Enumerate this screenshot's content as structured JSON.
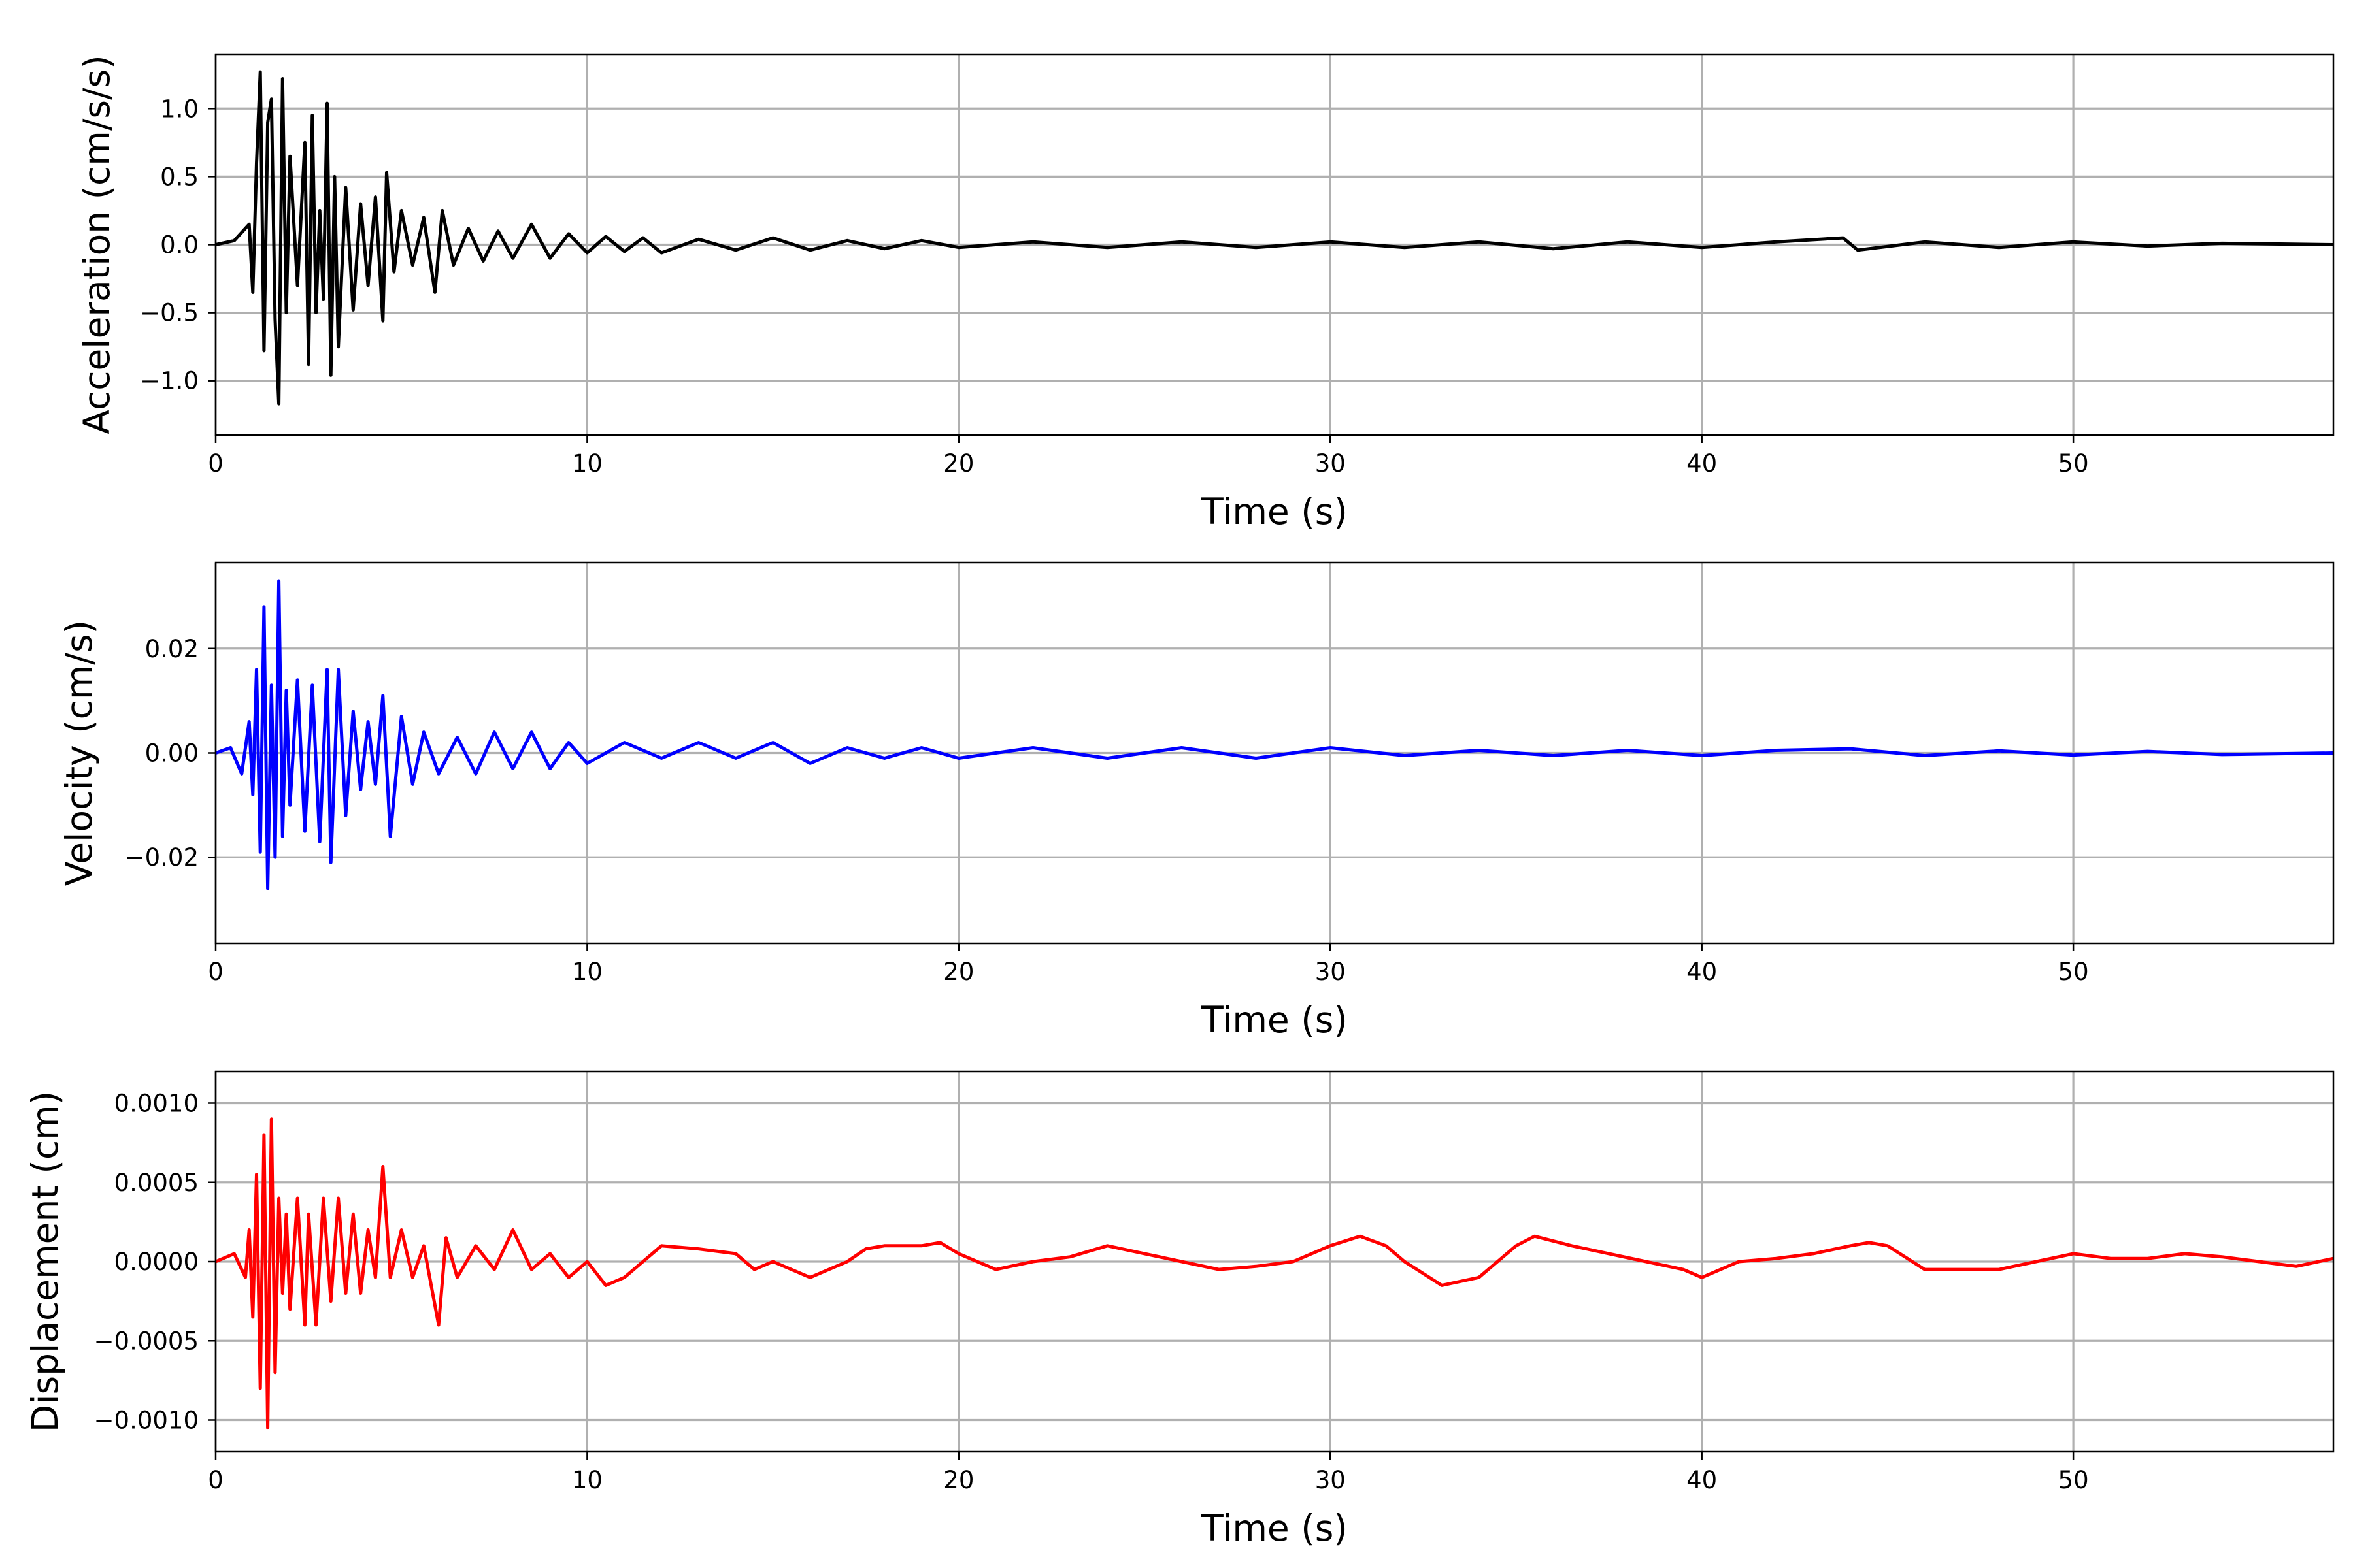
{
  "chart_data": [
    {
      "type": "line",
      "xlabel": "Time (s)",
      "ylabel": "Acceleration (cm/s/s)",
      "xlim": [
        0,
        57
      ],
      "ylim": [
        -1.4,
        1.4
      ],
      "xticks": [
        0,
        10,
        20,
        30,
        40,
        50
      ],
      "xtick_labels": [
        "0",
        "10",
        "20",
        "30",
        "40",
        "50"
      ],
      "yticks": [
        1.0,
        0.5,
        0.0,
        -0.5,
        -1.0
      ],
      "ytick_labels": [
        "1.0",
        "0.5",
        "0.0",
        "−0.5",
        "−1.0"
      ],
      "grid": true,
      "series": [
        {
          "color": "#000000",
          "x": [
            0,
            0.5,
            0.9,
            1.0,
            1.1,
            1.2,
            1.3,
            1.4,
            1.5,
            1.6,
            1.7,
            1.8,
            1.9,
            2.0,
            2.2,
            2.4,
            2.5,
            2.6,
            2.7,
            2.8,
            2.9,
            3.0,
            3.1,
            3.2,
            3.3,
            3.5,
            3.7,
            3.9,
            4.1,
            4.3,
            4.5,
            4.6,
            4.8,
            5.0,
            5.3,
            5.6,
            5.9,
            6.1,
            6.4,
            6.8,
            7.2,
            7.6,
            8.0,
            8.5,
            9.0,
            9.5,
            10.0,
            10.5,
            11.0,
            11.5,
            12.0,
            13.0,
            14.0,
            15.0,
            16.0,
            17.0,
            18.0,
            19.0,
            20.0,
            22.0,
            24.0,
            26.0,
            28.0,
            30.0,
            32.0,
            34.0,
            36.0,
            38.0,
            40.0,
            42.0,
            43.8,
            44.2,
            46.0,
            48.0,
            50.0,
            52.0,
            54.0,
            57.0
          ],
          "y": [
            0.0,
            0.03,
            0.15,
            -0.35,
            0.6,
            1.27,
            -0.78,
            0.9,
            1.07,
            -0.55,
            -1.17,
            1.22,
            -0.5,
            0.65,
            -0.3,
            0.75,
            -0.88,
            0.95,
            -0.5,
            0.25,
            -0.4,
            1.04,
            -0.96,
            0.5,
            -0.75,
            0.42,
            -0.48,
            0.3,
            -0.3,
            0.35,
            -0.56,
            0.53,
            -0.2,
            0.25,
            -0.15,
            0.2,
            -0.35,
            0.25,
            -0.15,
            0.12,
            -0.12,
            0.1,
            -0.1,
            0.15,
            -0.1,
            0.08,
            -0.06,
            0.06,
            -0.05,
            0.05,
            -0.06,
            0.04,
            -0.04,
            0.05,
            -0.04,
            0.03,
            -0.03,
            0.03,
            -0.02,
            0.02,
            -0.02,
            0.02,
            -0.02,
            0.02,
            -0.02,
            0.02,
            -0.03,
            0.02,
            -0.02,
            0.02,
            0.05,
            -0.04,
            0.02,
            -0.02,
            0.02,
            -0.01,
            0.01,
            0.0
          ]
        }
      ]
    },
    {
      "type": "line",
      "xlabel": "Time (s)",
      "ylabel": "Velocity (cm/s)",
      "xlim": [
        0,
        57
      ],
      "ylim": [
        -0.0365,
        0.0365
      ],
      "xticks": [
        0,
        10,
        20,
        30,
        40,
        50
      ],
      "xtick_labels": [
        "0",
        "10",
        "20",
        "30",
        "40",
        "50"
      ],
      "yticks": [
        0.02,
        0.0,
        -0.02
      ],
      "ytick_labels": [
        "0.02",
        "0.00",
        "−0.02"
      ],
      "grid": true,
      "series": [
        {
          "color": "#0000ff",
          "x": [
            0,
            0.4,
            0.7,
            0.9,
            1.0,
            1.1,
            1.2,
            1.3,
            1.4,
            1.5,
            1.6,
            1.7,
            1.8,
            1.9,
            2.0,
            2.2,
            2.4,
            2.6,
            2.8,
            3.0,
            3.1,
            3.3,
            3.5,
            3.7,
            3.9,
            4.1,
            4.3,
            4.5,
            4.7,
            5.0,
            5.3,
            5.6,
            6.0,
            6.5,
            7.0,
            7.5,
            8.0,
            8.5,
            9.0,
            9.5,
            10.0,
            11.0,
            12.0,
            13.0,
            14.0,
            15.0,
            16.0,
            17.0,
            18.0,
            19.0,
            20.0,
            22.0,
            24.0,
            26.0,
            28.0,
            30.0,
            32.0,
            34.0,
            36.0,
            38.0,
            40.0,
            42.0,
            44.0,
            46.0,
            48.0,
            50.0,
            52.0,
            54.0,
            57.0
          ],
          "y": [
            0.0,
            0.001,
            -0.004,
            0.006,
            -0.008,
            0.016,
            -0.019,
            0.028,
            -0.026,
            0.013,
            -0.02,
            0.033,
            -0.016,
            0.012,
            -0.01,
            0.014,
            -0.015,
            0.013,
            -0.017,
            0.016,
            -0.021,
            0.016,
            -0.012,
            0.008,
            -0.007,
            0.006,
            -0.006,
            0.011,
            -0.016,
            0.007,
            -0.006,
            0.004,
            -0.004,
            0.003,
            -0.004,
            0.004,
            -0.003,
            0.004,
            -0.003,
            0.002,
            -0.002,
            0.002,
            -0.001,
            0.002,
            -0.001,
            0.002,
            -0.002,
            0.001,
            -0.001,
            0.001,
            -0.001,
            0.001,
            -0.001,
            0.001,
            -0.001,
            0.001,
            -0.0005,
            0.0005,
            -0.0005,
            0.0005,
            -0.0005,
            0.0005,
            0.0008,
            -0.0005,
            0.0004,
            -0.0004,
            0.0003,
            -0.0003,
            0.0
          ]
        }
      ]
    },
    {
      "type": "line",
      "xlabel": "Time (s)",
      "ylabel": "Displacement (cm)",
      "xlim": [
        0,
        57
      ],
      "ylim": [
        -0.0012,
        0.0012
      ],
      "xticks": [
        0,
        10,
        20,
        30,
        40,
        50
      ],
      "xtick_labels": [
        "0",
        "10",
        "20",
        "30",
        "40",
        "50"
      ],
      "yticks": [
        0.001,
        0.0005,
        0.0,
        -0.0005,
        -0.001
      ],
      "ytick_labels": [
        "0.0010",
        "0.0005",
        "0.0000",
        "−0.0005",
        "−0.0010"
      ],
      "grid": true,
      "series": [
        {
          "color": "#ff0000",
          "x": [
            0,
            0.5,
            0.8,
            0.9,
            1.0,
            1.1,
            1.2,
            1.3,
            1.4,
            1.5,
            1.6,
            1.7,
            1.8,
            1.9,
            2.0,
            2.2,
            2.4,
            2.5,
            2.7,
            2.9,
            3.1,
            3.3,
            3.5,
            3.7,
            3.9,
            4.1,
            4.3,
            4.5,
            4.7,
            5.0,
            5.3,
            5.6,
            6.0,
            6.2,
            6.5,
            7.0,
            7.5,
            8.0,
            8.5,
            9.0,
            9.5,
            10.0,
            10.5,
            11.0,
            11.5,
            12.0,
            13.0,
            14.0,
            14.5,
            15.0,
            16.0,
            17.0,
            17.5,
            18.0,
            19.0,
            19.5,
            20.0,
            21.0,
            22.0,
            23.0,
            24.0,
            25.0,
            26.0,
            27.0,
            28.0,
            29.0,
            30.0,
            30.8,
            31.5,
            32.0,
            33.0,
            34.0,
            35.0,
            35.5,
            36.5,
            37.5,
            38.5,
            39.5,
            40.0,
            41.0,
            42.0,
            43.0,
            44.0,
            44.5,
            45.0,
            46.0,
            47.0,
            48.0,
            49.0,
            50.0,
            51.0,
            52.0,
            53.0,
            54.0,
            55.0,
            56.0,
            57.0
          ],
          "y": [
            0.0,
            5e-05,
            -0.0001,
            0.0002,
            -0.00035,
            0.00055,
            -0.0008,
            0.0008,
            -0.00105,
            0.0009,
            -0.0007,
            0.0004,
            -0.0002,
            0.0003,
            -0.0003,
            0.0004,
            -0.0004,
            0.0003,
            -0.0004,
            0.0004,
            -0.00025,
            0.0004,
            -0.0002,
            0.0003,
            -0.0002,
            0.0002,
            -0.0001,
            0.0006,
            -0.0001,
            0.0002,
            -0.0001,
            0.0001,
            -0.0004,
            0.00015,
            -0.0001,
            0.0001,
            -5e-05,
            0.0002,
            -5e-05,
            5e-05,
            -0.0001,
            0.0,
            -0.00015,
            -0.0001,
            0.0,
            0.0001,
            8e-05,
            5e-05,
            -5e-05,
            0.0,
            -0.0001,
            0.0,
            8e-05,
            0.0001,
            0.0001,
            0.00012,
            5e-05,
            -5e-05,
            0.0,
            3e-05,
            0.0001,
            5e-05,
            0.0,
            -5e-05,
            -3e-05,
            0.0,
            0.0001,
            0.00016,
            0.0001,
            0.0,
            -0.00015,
            -0.0001,
            0.0001,
            0.00016,
            0.0001,
            5e-05,
            0.0,
            -5e-05,
            -0.0001,
            0.0,
            2e-05,
            5e-05,
            0.0001,
            0.00012,
            0.0001,
            -5e-05,
            -5e-05,
            -5e-05,
            0.0,
            5e-05,
            2e-05,
            2e-05,
            5e-05,
            3e-05,
            0.0,
            -3e-05,
            2e-05
          ]
        }
      ]
    }
  ]
}
